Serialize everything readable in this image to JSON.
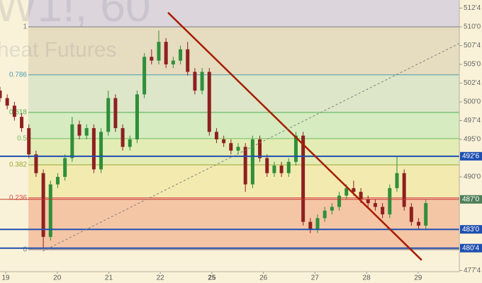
{
  "chart_data": {
    "type": "candlestick",
    "watermark": "W1!, 60",
    "watermark_subtitle": "heat Futures",
    "xlim": [
      -0.11,
      8.8
    ],
    "ylim": [
      477.36,
      513.58
    ],
    "xticks": [
      {
        "value": 0,
        "label": "19"
      },
      {
        "value": 1,
        "label": "20"
      },
      {
        "value": 2,
        "label": "21"
      },
      {
        "value": 3,
        "label": "22"
      },
      {
        "value": 4,
        "label": "25"
      },
      {
        "value": 5,
        "label": "26"
      },
      {
        "value": 6,
        "label": "27"
      },
      {
        "value": 7,
        "label": "28"
      },
      {
        "value": 8,
        "label": "29"
      }
    ],
    "yticks": [
      {
        "value": 512.5,
        "label": "512'4"
      },
      {
        "value": 510,
        "label": "510'0"
      },
      {
        "value": 507.5,
        "label": "507'4"
      },
      {
        "value": 505,
        "label": "505'0"
      },
      {
        "value": 502.5,
        "label": "502'4"
      },
      {
        "value": 500,
        "label": "500'0"
      },
      {
        "value": 497.5,
        "label": "497'4"
      },
      {
        "value": 495,
        "label": "495'0"
      },
      {
        "value": 490,
        "label": "490'0"
      },
      {
        "value": 477.5,
        "label": "477'4"
      }
    ],
    "up_color": "#2f8f3a",
    "down_color": "#8e2020",
    "x": [
      -0.11,
      0.03,
      0.17,
      0.31,
      0.45,
      0.59,
      0.73,
      0.87,
      1.01,
      1.15,
      1.29,
      1.43,
      1.57,
      1.71,
      1.85,
      1.99,
      2.13,
      2.27,
      2.41,
      2.55,
      2.69,
      2.83,
      2.97,
      3.11,
      3.25,
      3.39,
      3.53,
      3.67,
      3.81,
      3.95,
      4.09,
      4.23,
      4.37,
      4.51,
      4.65,
      4.79,
      4.93,
      5.07,
      5.21,
      5.35,
      5.49,
      5.63,
      5.77,
      5.91,
      6.05,
      6.19,
      6.33,
      6.47,
      6.61,
      6.75,
      6.89,
      7.03,
      7.17,
      7.31,
      7.45,
      7.59,
      7.73,
      7.87,
      8.01,
      8.15
    ],
    "open": [
      501.5,
      500.5,
      499.5,
      498.0,
      496.5,
      493.0,
      490.5,
      482.0,
      489.0,
      490.0,
      492.5,
      497.0,
      495.5,
      496.5,
      491.0,
      496.0,
      500.5,
      496.5,
      494.0,
      495.0,
      501.0,
      506.0,
      505.5,
      508.0,
      505.0,
      505.5,
      507.0,
      504.0,
      501.5,
      504.0,
      496.0,
      495.0,
      494.5,
      493.5,
      494.0,
      489.0,
      495.0,
      492.5,
      490.5,
      491.5,
      490.5,
      492.0,
      495.5,
      484.0,
      483.0,
      484.5,
      485.5,
      486.0,
      487.5,
      488.5,
      488.0,
      487.0,
      486.5,
      486.0,
      485.0,
      488.5,
      490.5,
      486.0,
      484.0,
      483.5
    ],
    "high": [
      502.0,
      501.0,
      500.0,
      498.5,
      497.0,
      493.5,
      491.0,
      489.5,
      490.5,
      493.0,
      498.0,
      497.5,
      497.0,
      497.0,
      496.5,
      501.5,
      501.0,
      497.0,
      495.5,
      501.5,
      506.5,
      507.0,
      509.5,
      508.5,
      506.0,
      507.5,
      508.0,
      504.5,
      504.5,
      504.5,
      496.5,
      495.5,
      495.0,
      494.5,
      494.5,
      495.5,
      495.5,
      493.0,
      492.0,
      492.0,
      492.5,
      496.0,
      496.0,
      484.5,
      485.0,
      486.0,
      486.5,
      488.0,
      489.0,
      489.5,
      488.5,
      487.5,
      487.0,
      486.5,
      489.0,
      492.8,
      491.0,
      486.5,
      484.5,
      487.0
    ],
    "low": [
      500.0,
      499.0,
      497.5,
      496.0,
      492.5,
      490.0,
      480.5,
      481.5,
      488.5,
      489.5,
      492.0,
      495.0,
      495.0,
      490.5,
      490.5,
      495.5,
      496.0,
      493.5,
      493.5,
      494.5,
      500.5,
      505.0,
      505.0,
      504.5,
      504.5,
      505.0,
      503.5,
      501.0,
      501.0,
      495.5,
      494.5,
      494.0,
      493.0,
      493.0,
      488.0,
      488.5,
      492.0,
      490.0,
      490.0,
      490.0,
      490.0,
      491.5,
      483.5,
      482.5,
      482.5,
      484.0,
      485.0,
      485.5,
      487.0,
      487.5,
      486.5,
      486.0,
      485.5,
      484.5,
      484.5,
      488.0,
      485.5,
      483.5,
      483.0,
      483.0
    ],
    "close": [
      500.5,
      499.5,
      498.0,
      496.5,
      493.0,
      490.5,
      482.0,
      489.0,
      490.0,
      492.5,
      497.0,
      495.5,
      496.5,
      491.0,
      496.0,
      500.5,
      496.5,
      494.0,
      495.0,
      501.0,
      506.0,
      505.5,
      508.0,
      505.0,
      505.5,
      507.0,
      504.0,
      501.5,
      504.0,
      496.0,
      495.0,
      494.5,
      493.5,
      494.0,
      489.0,
      495.0,
      492.5,
      490.5,
      491.5,
      490.5,
      492.0,
      495.5,
      484.0,
      483.0,
      484.5,
      485.5,
      486.0,
      487.5,
      488.5,
      488.0,
      487.0,
      486.5,
      486.0,
      485.0,
      488.5,
      490.5,
      486.0,
      484.0,
      483.5,
      486.5
    ],
    "fib_start": 0.44,
    "fib_levels": [
      {
        "ratio": 1,
        "price": 510.0,
        "color": "#787b86",
        "fill": "#ddd5dc"
      },
      {
        "ratio": 0.786,
        "price": 503.6,
        "color": "#4f9cb0",
        "fill": "#e6dcbf"
      },
      {
        "ratio": 0.618,
        "price": 498.6,
        "color": "#4caf50",
        "fill": "#dde6c8"
      },
      {
        "ratio": 0.5,
        "price": 495.1,
        "color": "#6fbf5f",
        "fill": "#d6ebc0"
      },
      {
        "ratio": 0.382,
        "price": 491.6,
        "color": "#9aa830",
        "fill": "#e4ecb6"
      },
      {
        "ratio": 0.236,
        "price": 487.2,
        "color": "#d84b4b",
        "fill": "#f3eab0"
      },
      {
        "ratio": 0,
        "price": 480.3,
        "color": "#787b86",
        "fill": "#f5c6a6"
      }
    ],
    "hlines": [
      {
        "price": 492.75,
        "label": "492'6",
        "color": "#1f4fb0"
      },
      {
        "price": 487.0,
        "label": "487'0",
        "color": "#c0392b",
        "label_bg": "#4f7f5a"
      },
      {
        "price": 483.0,
        "label": "483'0",
        "color": "#1f4fb0"
      },
      {
        "price": 480.5,
        "label": "480'4",
        "color": "#1f4fb0"
      }
    ],
    "trendlines": [
      {
        "x": [
          3.15,
          8.07
        ],
        "y": [
          511.9,
          478.9
        ],
        "color": "#a61c00",
        "width": 2.5,
        "dashed": false
      },
      {
        "x": [
          0.72,
          8.8
        ],
        "y": [
          480.1,
          507.8
        ],
        "color": "#7f7f7f",
        "width": 1,
        "dashed": true
      }
    ]
  }
}
